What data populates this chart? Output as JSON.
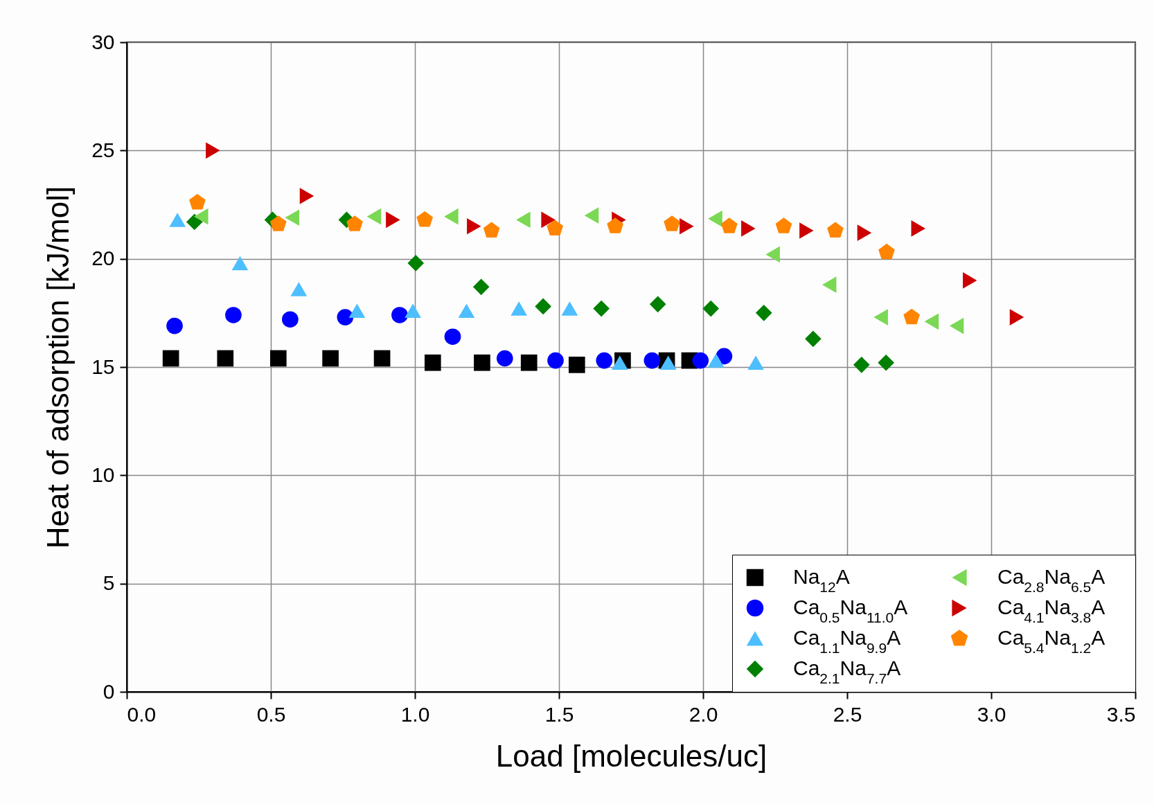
{
  "chart_data": {
    "type": "scatter",
    "xlabel": "Load [molecules/uc]",
    "ylabel": "Heat of adsorption [kJ/mol]",
    "xlim": [
      0,
      3.5
    ],
    "ylim": [
      0,
      30
    ],
    "xticks": [
      "0.0",
      0.5,
      "1.0",
      1.5,
      "2.0",
      2.5,
      "3.0",
      3.5
    ],
    "yticks": [
      0,
      5,
      10,
      15,
      20,
      25,
      30
    ],
    "grid": true,
    "legend": "bottom right",
    "series": [
      {
        "name": "Na$_{12}$A",
        "color": "#000000",
        "marker": "square",
        "x": [
          0.153,
          0.342,
          0.526,
          0.707,
          0.886,
          1.062,
          1.233,
          1.396,
          1.562,
          1.721,
          1.874,
          1.953
        ],
        "values": [
          15.4,
          15.4,
          15.4,
          15.4,
          15.4,
          15.2,
          15.2,
          15.2,
          15.1,
          15.3,
          15.3,
          15.3
        ]
      },
      {
        "name": "Ca$_{0.5}$Na$_{11.0}$A",
        "color": "#0000ff",
        "marker": "circle",
        "x": [
          0.166,
          0.37,
          0.567,
          0.758,
          0.947,
          1.131,
          1.312,
          1.488,
          1.657,
          1.823,
          1.991,
          2.073
        ],
        "values": [
          16.9,
          17.4,
          17.2,
          17.3,
          17.4,
          16.4,
          15.4,
          15.3,
          15.3,
          15.3,
          15.3,
          15.5
        ]
      },
      {
        "name": "Ca$_{1.1}$Na$_{9.9}$A",
        "color": "#4dbeff",
        "marker": "triangle",
        "x": [
          0.176,
          0.393,
          0.597,
          0.799,
          0.993,
          1.179,
          1.361,
          1.537,
          1.711,
          1.879,
          2.045,
          2.183
        ],
        "values": [
          21.8,
          19.8,
          18.6,
          17.6,
          17.6,
          17.6,
          17.7,
          17.7,
          15.2,
          15.2,
          15.3,
          15.2
        ]
      },
      {
        "name": "Ca$_{2.1}$Na$_{7.7}$A",
        "color": "#008000",
        "marker": "diamond",
        "x": [
          0.235,
          0.506,
          0.763,
          1.003,
          1.23,
          1.445,
          1.647,
          1.843,
          2.027,
          2.211,
          2.382,
          2.55,
          2.635
        ],
        "values": [
          21.7,
          21.8,
          21.8,
          19.8,
          18.7,
          17.8,
          17.7,
          17.9,
          17.7,
          17.5,
          16.3,
          15.1,
          15.2
        ]
      },
      {
        "name": "Ca$_{2.8}$Na$_{6.5}$A",
        "color": "#7ad854",
        "marker": "triangle-left",
        "x": [
          0.258,
          0.574,
          0.858,
          1.126,
          1.376,
          1.613,
          2.042,
          2.242,
          2.438,
          2.617,
          2.793,
          2.88
        ],
        "values": [
          21.95,
          21.9,
          21.95,
          21.95,
          21.8,
          22.0,
          21.85,
          20.2,
          18.8,
          17.3,
          17.1,
          16.9
        ]
      },
      {
        "name": "Ca$_{4.1}$Na$_{3.8}$A",
        "color": "#cc0000",
        "marker": "triangle-right",
        "x": [
          0.299,
          0.625,
          0.924,
          1.205,
          1.463,
          1.708,
          1.943,
          2.157,
          2.359,
          2.56,
          2.747,
          2.926,
          3.089
        ],
        "values": [
          25.0,
          22.9,
          21.8,
          21.5,
          21.8,
          21.8,
          21.5,
          21.4,
          21.3,
          21.2,
          21.4,
          19.0,
          17.3
        ]
      },
      {
        "name": "Ca$_{5.4}$Na$_{1.2}$A",
        "color": "#ff8400",
        "x": [
          0.245,
          0.526,
          0.791,
          1.034,
          1.266,
          1.486,
          1.695,
          1.892,
          2.091,
          2.28,
          2.459,
          2.637,
          2.724
        ],
        "values": [
          22.6,
          21.6,
          21.6,
          21.8,
          21.3,
          21.4,
          21.5,
          21.6,
          21.5,
          21.5,
          21.3,
          20.3,
          17.3
        ]
      }
    ]
  }
}
